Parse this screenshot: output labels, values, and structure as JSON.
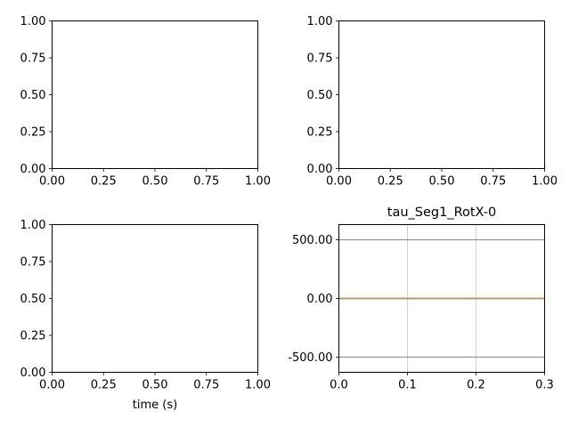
{
  "chart_data": [
    {
      "type": "line",
      "position": "top-left",
      "title": "",
      "xlabel": "",
      "ylabel": "",
      "xlim": [
        0,
        1
      ],
      "ylim": [
        0,
        1
      ],
      "x_ticks": [
        "0.00",
        "0.25",
        "0.50",
        "0.75",
        "1.00"
      ],
      "y_ticks": [
        "0.00",
        "0.25",
        "0.50",
        "0.75",
        "1.00"
      ],
      "series": []
    },
    {
      "type": "line",
      "position": "top-right",
      "title": "",
      "xlabel": "",
      "ylabel": "",
      "xlim": [
        0,
        1
      ],
      "ylim": [
        0,
        1
      ],
      "x_ticks": [
        "0.00",
        "0.25",
        "0.50",
        "0.75",
        "1.00"
      ],
      "y_ticks": [
        "0.00",
        "0.25",
        "0.50",
        "0.75",
        "1.00"
      ],
      "series": []
    },
    {
      "type": "line",
      "position": "bottom-left",
      "title": "",
      "xlabel": "time (s)",
      "ylabel": "",
      "xlim": [
        0,
        1
      ],
      "ylim": [
        0,
        1
      ],
      "x_ticks": [
        "0.00",
        "0.25",
        "0.50",
        "0.75",
        "1.00"
      ],
      "y_ticks": [
        "0.00",
        "0.25",
        "0.50",
        "0.75",
        "1.00"
      ],
      "series": []
    },
    {
      "type": "line",
      "position": "bottom-right",
      "title": "tau_Seg1_RotX-0",
      "xlabel": "",
      "ylabel": "",
      "xlim": [
        0,
        0.3
      ],
      "ylim": [
        -630,
        630
      ],
      "x_ticks": [
        "0.0",
        "0.1",
        "0.2",
        "0.3"
      ],
      "x_tick_values": [
        0,
        0.1,
        0.2,
        0.3
      ],
      "y_ticks": [
        "-500.00",
        "0.00",
        "500.00"
      ],
      "y_tick_values": [
        -500,
        0,
        500
      ],
      "vlines": [
        0.1,
        0.2
      ],
      "vline_color": "#d3d3d3",
      "hlines": [
        -500,
        500
      ],
      "hline_color": "#808080",
      "series": [
        {
          "color": "#1f77b4",
          "x": [
            0,
            0.3
          ],
          "y": [
            0,
            0
          ]
        },
        {
          "color": "#ff7f0e",
          "x": [
            0,
            0.3
          ],
          "y": [
            0,
            0
          ]
        }
      ]
    }
  ]
}
